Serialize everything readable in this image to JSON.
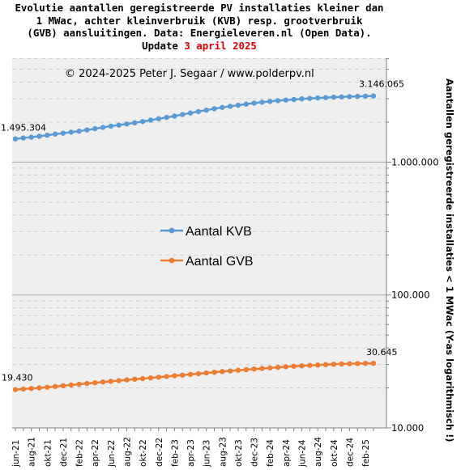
{
  "title": {
    "line1": "Evolutie aantallen geregistreerde PV installaties kleiner dan",
    "line2": "1 MWac, achter kleinverbruik (KVB) resp. grootverbruik",
    "line3": "(GVB) aansluitingen. Data: Energieleveren.nl (Open Data).",
    "line4_prefix": "Update ",
    "line4_date": "3 april 2025"
  },
  "copyright": "© 2024-2025 Peter J. Segaar / www.polderpv.nl",
  "colors": {
    "kvb": "#5b9bd5",
    "gvb": "#ed7d31",
    "plot_bg": "#efefef",
    "date_accent": "#e00000"
  },
  "chart_data": {
    "type": "line",
    "y_scale": "log",
    "ylim": [
      10000,
      10000000
    ],
    "ylabel": "Aantallen geregistreerde installaties < 1 MWac (Y-as logarithmisch !)",
    "yticks": [
      {
        "value": 10000,
        "label": "10.000"
      },
      {
        "value": 100000,
        "label": "100.000"
      },
      {
        "value": 1000000,
        "label": "1.000.000"
      }
    ],
    "grid": true,
    "legend_position": "center-left",
    "x": [
      "jun-21",
      "jul-21",
      "aug-21",
      "sep-21",
      "okt-21",
      "nov-21",
      "dec-21",
      "jan-22",
      "feb-22",
      "mrt-22",
      "apr-22",
      "mei-22",
      "jun-22",
      "jul-22",
      "aug-22",
      "sep-22",
      "okt-22",
      "nov-22",
      "dec-22",
      "jan-23",
      "feb-23",
      "mrt-23",
      "apr-23",
      "mei-23",
      "jun-23",
      "jul-23",
      "aug-23",
      "sep-23",
      "okt-23",
      "nov-23",
      "dec-23",
      "jan-24",
      "feb-24",
      "mrt-24",
      "apr-24",
      "mei-24",
      "jun-24",
      "jul-24",
      "aug-24",
      "sep-24",
      "okt-24",
      "nov-24",
      "dec-24",
      "jan-25",
      "feb-25",
      "mrt-25"
    ],
    "xtick_labels": [
      "jun-21",
      "aug-21",
      "okt-21",
      "dec-21",
      "feb-22",
      "apr-22",
      "jun-22",
      "aug-22",
      "okt-22",
      "dec-22",
      "feb-23",
      "apr-23",
      "jun-23",
      "aug-23",
      "okt-23",
      "dec-23",
      "feb-24",
      "apr-24",
      "jun-24",
      "aug-24",
      "okt-24",
      "dec-24",
      "feb-25"
    ],
    "series": [
      {
        "name": "Aantal KVB",
        "first_label": "1.495.304",
        "last_label": "3.146.065",
        "values": [
          1495304,
          1520000,
          1540000,
          1565000,
          1595000,
          1625000,
          1650000,
          1680000,
          1710000,
          1745000,
          1785000,
          1825000,
          1865000,
          1900000,
          1935000,
          1975000,
          2020000,
          2070000,
          2120000,
          2170000,
          2220000,
          2280000,
          2340000,
          2400000,
          2460000,
          2520000,
          2580000,
          2630000,
          2680000,
          2730000,
          2780000,
          2820000,
          2860000,
          2900000,
          2930000,
          2960000,
          2990000,
          3015000,
          3040000,
          3060000,
          3080000,
          3095000,
          3110000,
          3125000,
          3135000,
          3146065
        ]
      },
      {
        "name": "Aantal GVB",
        "first_label": "19.430",
        "last_label": "30.645",
        "values": [
          19430,
          19620,
          19800,
          20020,
          20250,
          20500,
          20780,
          21050,
          21320,
          21600,
          21880,
          22150,
          22430,
          22700,
          22980,
          23250,
          23520,
          23800,
          24080,
          24380,
          24680,
          24980,
          25300,
          25600,
          25920,
          26230,
          26550,
          26850,
          27150,
          27450,
          27750,
          28020,
          28300,
          28580,
          28850,
          29100,
          29330,
          29550,
          29760,
          29950,
          30120,
          30280,
          30400,
          30500,
          30580,
          30645
        ]
      }
    ]
  }
}
